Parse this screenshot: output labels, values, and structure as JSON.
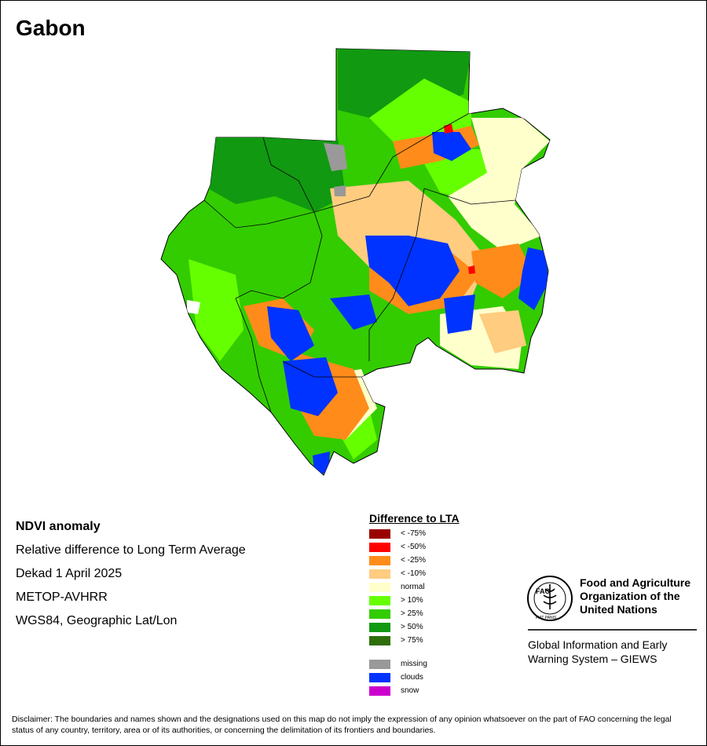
{
  "title": "Gabon",
  "info": {
    "line1": "NDVI anomaly",
    "line2": "Relative difference to Long Term Average",
    "line3": "Dekad 1 April 2025",
    "line4": "METOP-AVHRR",
    "line5": "WGS84, Geographic Lat/Lon"
  },
  "legend": {
    "title": "Difference to LTA",
    "classes": [
      {
        "label": "< -75%",
        "color": "#990000"
      },
      {
        "label": "< -50%",
        "color": "#ff0000"
      },
      {
        "label": "< -25%",
        "color": "#ff8c1a"
      },
      {
        "label": "< -10%",
        "color": "#ffcc80"
      },
      {
        "label": "normal",
        "color": "#ffffcc"
      },
      {
        "label": "> 10%",
        "color": "#66ff00"
      },
      {
        "label": "> 25%",
        "color": "#33cc00"
      },
      {
        "label": "> 50%",
        "color": "#119911"
      },
      {
        "label": "> 75%",
        "color": "#2e6e0a"
      }
    ],
    "other": [
      {
        "label": "missing",
        "color": "#999999"
      },
      {
        "label": "clouds",
        "color": "#0033ff"
      },
      {
        "label": "snow",
        "color": "#cc00cc"
      }
    ]
  },
  "fao": {
    "name_line1": "Food and Agriculture",
    "name_line2": "Organization of the",
    "name_line3": "United Nations",
    "logo_text": "FAO",
    "logo_motto": "FIAT PANIS",
    "giews_line1": "Global Information and Early",
    "giews_line2": "Warning System – GIEWS"
  },
  "disclaimer": "Disclaimer: The boundaries and names shown and the designations used on this map do not imply the expression of any opinion whatsoever on the part of FAO concerning the legal status of any country, territory, area or of its authorities, or concerning the delimitation of its frontiers and boundaries."
}
